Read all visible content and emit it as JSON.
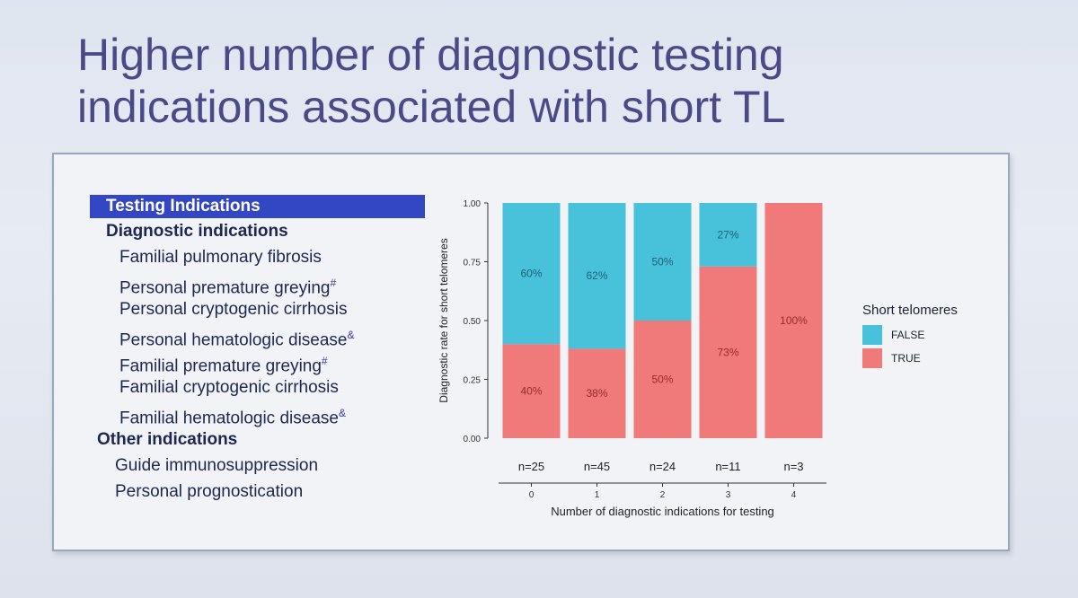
{
  "slide": {
    "title_line1": "Higher number of diagnostic testing",
    "title_line2": "indications associated with short TL"
  },
  "indications": {
    "header": "Testing Indications",
    "diagnostic_title": "Diagnostic indications",
    "diagnostic_items": [
      {
        "text": "Familial pulmonary fibrosis",
        "mark": ""
      },
      {
        "text": "Personal premature greying",
        "mark": "#"
      },
      {
        "text": "Personal cryptogenic cirrhosis",
        "mark": ""
      },
      {
        "text": "Personal hematologic disease",
        "mark": "&"
      },
      {
        "text": "Familial premature greying",
        "mark": "#"
      },
      {
        "text": "Familial cryptogenic cirrhosis",
        "mark": ""
      },
      {
        "text": "Familial hematologic disease",
        "mark": "&"
      }
    ],
    "other_title": "Other indications",
    "other_items": [
      "Guide immunosuppression",
      "Personal prognostication"
    ]
  },
  "chart_data": {
    "type": "bar",
    "stacked": true,
    "categories": [
      "0",
      "1",
      "2",
      "3",
      "4"
    ],
    "n_labels": [
      "n=25",
      "n=45",
      "n=24",
      "n=11",
      "n=3"
    ],
    "series": [
      {
        "name": "TRUE",
        "color": "#f0797a",
        "values": [
          0.4,
          0.38,
          0.5,
          0.73,
          1.0
        ],
        "labels": [
          "40%",
          "38%",
          "50%",
          "73%",
          "100%"
        ]
      },
      {
        "name": "FALSE",
        "color": "#48c2db",
        "values": [
          0.6,
          0.62,
          0.5,
          0.27,
          0.0
        ],
        "labels": [
          "60%",
          "62%",
          "50%",
          "27%",
          ""
        ]
      }
    ],
    "xlabel": "Number of diagnostic indications for testing",
    "ylabel": "Diagnostic rate for short telomeres",
    "ylim": [
      0,
      1
    ],
    "yticks": [
      "0.00",
      "0.25",
      "0.50",
      "0.75",
      "1.00"
    ],
    "grid": false,
    "legend": {
      "title": "Short telomeres",
      "placement": "right",
      "items": [
        {
          "label": "FALSE",
          "color": "#48c2db"
        },
        {
          "label": "TRUE",
          "color": "#f0797a"
        }
      ]
    }
  }
}
